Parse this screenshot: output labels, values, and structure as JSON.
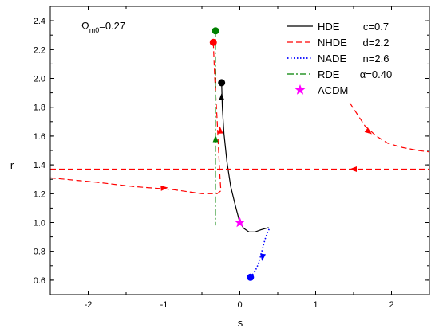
{
  "chart_data": {
    "type": "line",
    "title": "",
    "xlabel": "s",
    "ylabel": "r",
    "xlim": [
      -2.5,
      2.5
    ],
    "ylim": [
      0.5,
      2.5
    ],
    "x_ticks": [
      -2,
      -1,
      0,
      1,
      2
    ],
    "x_tick_labels": [
      "-2",
      "-1",
      "0",
      "1",
      "2"
    ],
    "y_ticks": [
      0.6,
      0.8,
      1.0,
      1.2,
      1.4,
      1.6,
      1.8,
      2.0,
      2.2,
      2.4
    ],
    "y_tick_labels": [
      "0.6",
      "0.8",
      "1.0",
      "1.2",
      "1.4",
      "1.6",
      "1.8",
      "2.0",
      "2.2",
      "2.4"
    ],
    "grid": false,
    "legend_position": "top-right",
    "annotation": {
      "prefix": "Ω",
      "subscript": "m0",
      "suffix": "=0.27"
    },
    "series": [
      {
        "name": "HDE",
        "param": "c=0.7",
        "style": "solid",
        "color": "#000000",
        "points": [
          [
            -0.24,
            1.97
          ],
          [
            -0.23,
            1.8
          ],
          [
            -0.21,
            1.62
          ],
          [
            -0.17,
            1.42
          ],
          [
            -0.12,
            1.25
          ],
          [
            -0.06,
            1.12
          ],
          [
            0.0,
            1.0
          ],
          [
            0.05,
            0.96
          ],
          [
            0.12,
            0.935
          ],
          [
            0.2,
            0.935
          ],
          [
            0.28,
            0.95
          ],
          [
            0.38,
            0.965
          ]
        ]
      },
      {
        "name": "NHDE",
        "param": "d=2.2",
        "style": "dashed",
        "color": "#ff0000",
        "points_a": [
          [
            -0.35,
            2.25
          ],
          [
            -0.33,
            2.0
          ],
          [
            -0.3,
            1.72
          ],
          [
            -0.28,
            1.5
          ],
          [
            -0.26,
            1.3
          ],
          [
            -0.25,
            1.22
          ],
          [
            -0.3,
            1.2
          ],
          [
            -0.5,
            1.2
          ],
          [
            -0.9,
            1.23
          ],
          [
            -1.4,
            1.25
          ],
          [
            -1.9,
            1.28
          ],
          [
            -2.5,
            1.31
          ]
        ],
        "points_b": [
          [
            -2.5,
            1.37
          ],
          [
            2.5,
            1.37
          ]
        ],
        "points_c": [
          [
            1.45,
            1.83
          ],
          [
            1.55,
            1.75
          ],
          [
            1.65,
            1.67
          ],
          [
            1.8,
            1.6
          ],
          [
            1.95,
            1.55
          ],
          [
            2.15,
            1.52
          ],
          [
            2.35,
            1.5
          ],
          [
            2.5,
            1.49
          ]
        ]
      },
      {
        "name": "NADE",
        "param": "n=2.6",
        "style": "dotted",
        "color": "#0000ff",
        "points": [
          [
            0.14,
            0.62
          ],
          [
            0.2,
            0.66
          ],
          [
            0.25,
            0.72
          ],
          [
            0.29,
            0.8
          ],
          [
            0.33,
            0.88
          ],
          [
            0.37,
            0.94
          ],
          [
            0.4,
            0.965
          ]
        ]
      },
      {
        "name": "RDE",
        "param": "α=0.40",
        "style": "dashdot",
        "color": "#008000",
        "points": [
          [
            -0.32,
            2.33
          ],
          [
            -0.32,
            2.0
          ],
          [
            -0.32,
            1.6
          ],
          [
            -0.32,
            1.2
          ],
          [
            -0.32,
            0.98
          ]
        ]
      }
    ],
    "endpoints": [
      {
        "name": "HDE",
        "x": -0.24,
        "y": 1.97,
        "color": "#000000"
      },
      {
        "name": "NHDE",
        "x": -0.35,
        "y": 2.25,
        "color": "#ff0000"
      },
      {
        "name": "NADE",
        "x": 0.14,
        "y": 0.62,
        "color": "#0000ff"
      },
      {
        "name": "RDE",
        "x": -0.32,
        "y": 2.33,
        "color": "#008000"
      }
    ],
    "fixed_point": {
      "name": "ΛCDM",
      "x": 0.0,
      "y": 1.0,
      "color": "#ff00ff"
    },
    "arrows": [
      {
        "series": "HDE",
        "x": -0.24,
        "y": 1.87,
        "dx": 0.0,
        "dy": 0.1,
        "color": "#000000"
      },
      {
        "series": "NHDE",
        "x": -0.26,
        "y": 1.64,
        "dx": -0.01,
        "dy": 0.1,
        "color": "#ff0000"
      },
      {
        "series": "NHDE",
        "x": -1.0,
        "y": 1.24,
        "dx": 0.12,
        "dy": 0.005,
        "color": "#ff0000"
      },
      {
        "series": "NHDE",
        "x": 1.5,
        "y": 1.37,
        "dx": -0.12,
        "dy": 0.0,
        "color": "#ff0000"
      },
      {
        "series": "NHDE",
        "x": 1.7,
        "y": 1.63,
        "dx": 0.1,
        "dy": -0.04,
        "color": "#ff0000"
      },
      {
        "series": "NADE",
        "x": 0.3,
        "y": 0.76,
        "dx": -0.015,
        "dy": -0.06,
        "color": "#0000ff"
      },
      {
        "series": "RDE",
        "x": -0.32,
        "y": 1.58,
        "dx": 0.0,
        "dy": 0.1,
        "color": "#008000"
      }
    ]
  }
}
